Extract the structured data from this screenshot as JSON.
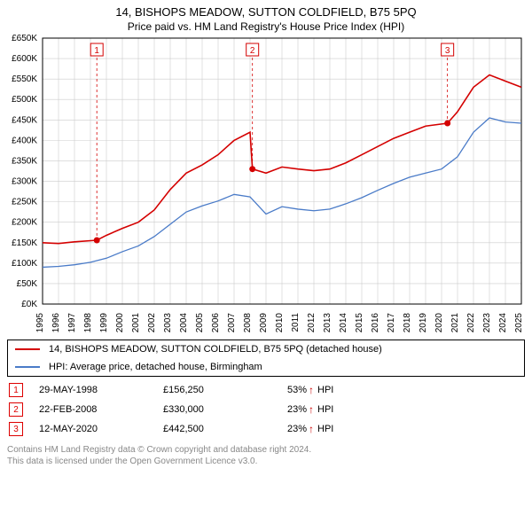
{
  "title": "14, BISHOPS MEADOW, SUTTON COLDFIELD, B75 5PQ",
  "subtitle": "Price paid vs. HM Land Registry's House Price Index (HPI)",
  "chart": {
    "type": "line",
    "background_color": "#ffffff",
    "plot_border_color": "#000000",
    "grid_color": "#cccccc",
    "y": {
      "min": 0,
      "max": 650,
      "step": 50,
      "format_prefix": "£",
      "format_suffix": "K"
    },
    "x": {
      "years": [
        1995,
        1996,
        1997,
        1998,
        1999,
        2000,
        2001,
        2002,
        2003,
        2004,
        2005,
        2006,
        2007,
        2008,
        2009,
        2010,
        2011,
        2012,
        2013,
        2014,
        2015,
        2016,
        2017,
        2018,
        2019,
        2020,
        2021,
        2022,
        2023,
        2024,
        2025
      ]
    },
    "series": [
      {
        "name": "price_paid",
        "color": "#d40000",
        "width": 1.6,
        "points": [
          [
            1995,
            150
          ],
          [
            1996,
            148
          ],
          [
            1997,
            152
          ],
          [
            1998.4,
            156
          ],
          [
            1999,
            168
          ],
          [
            2000,
            185
          ],
          [
            2001,
            200
          ],
          [
            2002,
            230
          ],
          [
            2003,
            280
          ],
          [
            2004,
            320
          ],
          [
            2005,
            340
          ],
          [
            2006,
            365
          ],
          [
            2007,
            400
          ],
          [
            2008,
            420
          ],
          [
            2008.15,
            330
          ],
          [
            2009,
            320
          ],
          [
            2010,
            335
          ],
          [
            2011,
            330
          ],
          [
            2012,
            326
          ],
          [
            2013,
            330
          ],
          [
            2014,
            345
          ],
          [
            2015,
            365
          ],
          [
            2016,
            385
          ],
          [
            2017,
            405
          ],
          [
            2018,
            420
          ],
          [
            2019,
            435
          ],
          [
            2020.37,
            442
          ],
          [
            2021,
            470
          ],
          [
            2022,
            530
          ],
          [
            2023,
            560
          ],
          [
            2024,
            545
          ],
          [
            2025,
            530
          ]
        ]
      },
      {
        "name": "hpi",
        "color": "#4a7bc8",
        "width": 1.3,
        "points": [
          [
            1995,
            90
          ],
          [
            1996,
            92
          ],
          [
            1997,
            96
          ],
          [
            1998,
            102
          ],
          [
            1999,
            112
          ],
          [
            2000,
            128
          ],
          [
            2001,
            142
          ],
          [
            2002,
            165
          ],
          [
            2003,
            195
          ],
          [
            2004,
            225
          ],
          [
            2005,
            240
          ],
          [
            2006,
            252
          ],
          [
            2007,
            268
          ],
          [
            2008,
            262
          ],
          [
            2009,
            220
          ],
          [
            2010,
            238
          ],
          [
            2011,
            232
          ],
          [
            2012,
            228
          ],
          [
            2013,
            232
          ],
          [
            2014,
            245
          ],
          [
            2015,
            260
          ],
          [
            2016,
            278
          ],
          [
            2017,
            295
          ],
          [
            2018,
            310
          ],
          [
            2019,
            320
          ],
          [
            2020,
            330
          ],
          [
            2021,
            360
          ],
          [
            2022,
            420
          ],
          [
            2023,
            455
          ],
          [
            2024,
            445
          ],
          [
            2025,
            442
          ]
        ]
      }
    ],
    "markers": [
      {
        "num": "1",
        "year": 1998.4,
        "value": 156,
        "box_y": 620
      },
      {
        "num": "2",
        "year": 2008.15,
        "value": 330,
        "box_y": 620
      },
      {
        "num": "3",
        "year": 2020.37,
        "value": 442,
        "box_y": 620
      }
    ]
  },
  "legend": [
    {
      "color": "#d40000",
      "label": "14, BISHOPS MEADOW, SUTTON COLDFIELD, B75 5PQ (detached house)"
    },
    {
      "color": "#4a7bc8",
      "label": "HPI: Average price, detached house, Birmingham"
    }
  ],
  "marker_rows": [
    {
      "num": "1",
      "date": "29-MAY-1998",
      "price": "£156,250",
      "pct": "53%",
      "tag": "HPI"
    },
    {
      "num": "2",
      "date": "22-FEB-2008",
      "price": "£330,000",
      "pct": "23%",
      "tag": "HPI"
    },
    {
      "num": "3",
      "date": "12-MAY-2020",
      "price": "£442,500",
      "pct": "23%",
      "tag": "HPI"
    }
  ],
  "footer1": "Contains HM Land Registry data © Crown copyright and database right 2024.",
  "footer2": "This data is licensed under the Open Government Licence v3.0."
}
